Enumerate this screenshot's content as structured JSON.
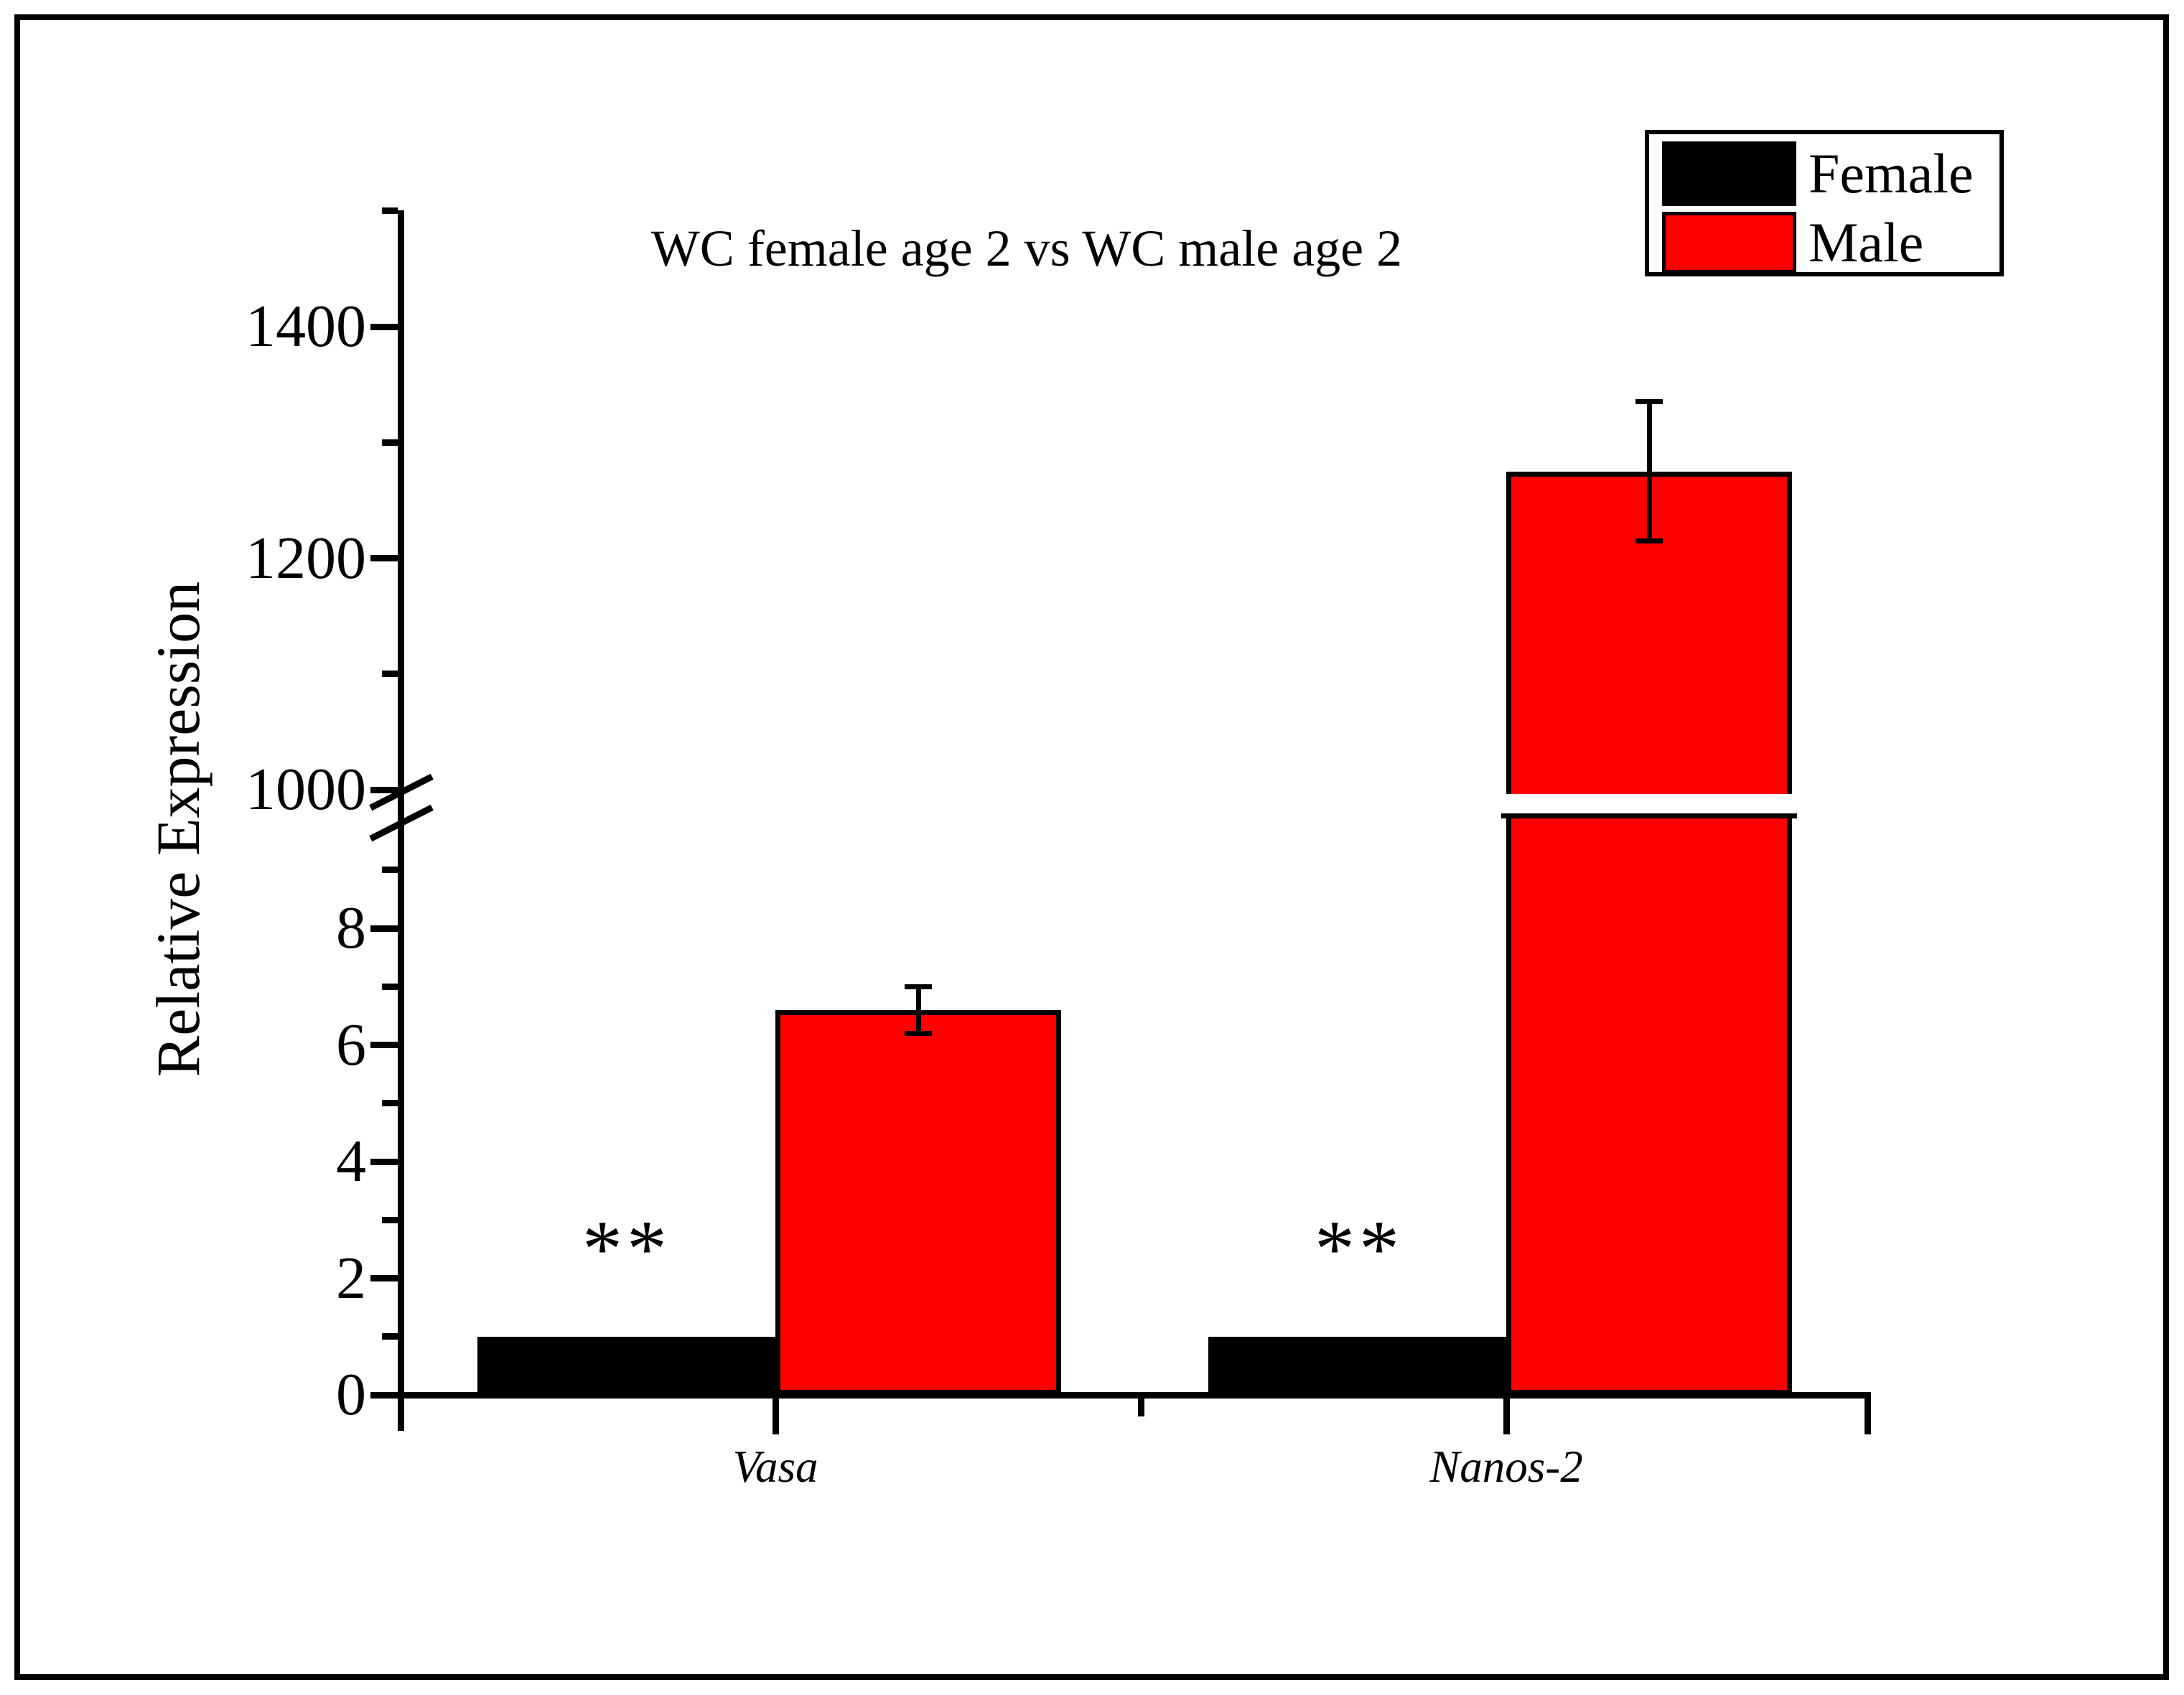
{
  "figure": {
    "title": "WC female age 2 vs WC male age 2",
    "y_axis_label": "Relative Expression"
  },
  "legend": {
    "items": [
      {
        "label": "Female",
        "color": "#000000"
      },
      {
        "label": "Male",
        "color": "#ff0000"
      }
    ]
  },
  "chart_data": {
    "type": "bar",
    "title": "WC female age 2 vs WC male age 2",
    "xlabel": "",
    "ylabel": "Relative Expression",
    "categories": [
      "Vasa",
      "Nanos-2"
    ],
    "series": [
      {
        "name": "Female",
        "color": "#000000",
        "values": [
          1,
          1
        ],
        "errors": [
          null,
          null
        ],
        "significance": [
          "**",
          "**"
        ]
      },
      {
        "name": "Male",
        "color": "#ff0000",
        "values": [
          6.6,
          1275
        ],
        "errors": [
          0.4,
          60
        ],
        "significance": [
          null,
          null
        ]
      }
    ],
    "y_axis": {
      "broken": true,
      "lower_segment": {
        "range": [
          0,
          10
        ],
        "major_ticks": [
          0,
          2,
          4,
          6,
          8
        ],
        "minor_ticks": [
          1,
          3,
          5,
          7,
          9
        ]
      },
      "upper_segment": {
        "range": [
          1000,
          1500
        ],
        "major_ticks": [
          1000,
          1200,
          1400
        ],
        "minor_ticks": [
          1100,
          1300,
          1500
        ]
      }
    },
    "legend_entries": [
      "Female",
      "Male"
    ],
    "legend_position": "top-right",
    "grid": false,
    "bar_outline_color": "#000000",
    "background_color": "#ffffff"
  }
}
